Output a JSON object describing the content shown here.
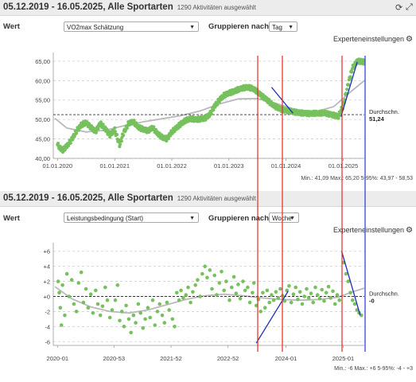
{
  "panels": [
    {
      "title": "05.12.2019 - 16.05.2025, Alle Sportarten",
      "count": "1290 Aktivitäten ausgewählt",
      "wert_label": "Wert",
      "wert_value": "VO2max Schätzung",
      "group_label": "Gruppieren nach",
      "group_value": "Tag",
      "expert_label": "Experteneinstellungen",
      "avg_label": "Durchschn.",
      "avg_value": "51,24",
      "minmax": "Min.: 41,09  Max.: 65,20  5-95%: 43,97 - 58,53"
    },
    {
      "title": "05.12.2019 - 16.05.2025, Alle Sportarten",
      "count": "1290 Aktivitäten ausgewählt",
      "wert_label": "Wert",
      "wert_value": "Leistungsbedingung (Start)",
      "group_label": "Gruppieren nach",
      "group_value": "Woche",
      "expert_label": "Experteneinstellungen",
      "avg_label": "Durchschn.",
      "avg_value": "-0",
      "minmax": "Min.: -6  Max.: +6  5-95%: -4 - +3"
    }
  ],
  "icons": [
    "refresh-icon",
    "expand-icon",
    "gear-icon",
    "chevron-down-icon"
  ],
  "chart_data": [
    {
      "type": "scatter",
      "x_ticks": [
        "01.01.2020",
        "01.01.2021",
        "01.01.2022",
        "01.01.2023",
        "01.01.2024",
        "01.01.2025"
      ],
      "y_ticks": [
        "40,00",
        "45,00",
        "50,00",
        "55,00",
        "60,00",
        "65,00"
      ],
      "ylim": [
        40,
        66
      ],
      "xlim": [
        "2019-12-05",
        "2025-05-16"
      ],
      "grid": "dashed horizontal",
      "average": 51.24,
      "point_color": "#76c15e",
      "trend_color": "#b9b9b9",
      "markers_red": [
        "2023-06-18",
        "2024-03-01",
        "2024-12-01"
      ],
      "markers_blue": [
        "2025-05-10"
      ],
      "annotation_lines": [
        {
          "from": [
            "2023-10-01",
            58.3
          ],
          "to": [
            "2024-02-15",
            51.6
          ]
        },
        {
          "from": [
            "2024-12-18",
            50.7
          ],
          "to": [
            "2025-04-01",
            64.8
          ]
        }
      ],
      "trend": [
        [
          "2019-12-15",
          50.3
        ],
        [
          "2020-03-01",
          47.8
        ],
        [
          "2020-07-01",
          46.8
        ],
        [
          "2020-11-01",
          47.2
        ],
        [
          "2021-03-01",
          48.4
        ],
        [
          "2021-07-01",
          49.4
        ],
        [
          "2021-11-01",
          50.2
        ],
        [
          "2022-03-01",
          51.0
        ],
        [
          "2022-07-01",
          52.2
        ],
        [
          "2022-11-01",
          54.0
        ],
        [
          "2023-03-01",
          55.3
        ],
        [
          "2023-07-01",
          55.4
        ],
        [
          "2023-11-01",
          54.1
        ],
        [
          "2024-03-01",
          52.6
        ],
        [
          "2024-07-01",
          51.9
        ],
        [
          "2024-11-01",
          53.3
        ],
        [
          "2025-03-01",
          57.5
        ],
        [
          "2025-05-16",
          60.0
        ]
      ],
      "series_points": [
        [
          "2020-01-01",
          43.5
        ],
        [
          "2020-02-01",
          42.0
        ],
        [
          "2020-03-01",
          43.2
        ],
        [
          "2020-04-01",
          44.8
        ],
        [
          "2020-05-01",
          47.0
        ],
        [
          "2020-06-01",
          48.6
        ],
        [
          "2020-07-01",
          49.2
        ],
        [
          "2020-08-01",
          48.0
        ],
        [
          "2020-09-01",
          46.9
        ],
        [
          "2020-10-01",
          49.0
        ],
        [
          "2020-11-01",
          47.6
        ],
        [
          "2020-12-01",
          46.0
        ],
        [
          "2021-01-01",
          47.3
        ],
        [
          "2021-02-01",
          43.5
        ],
        [
          "2021-03-01",
          46.8
        ],
        [
          "2021-04-01",
          49.1
        ],
        [
          "2021-05-01",
          49.4
        ],
        [
          "2021-06-01",
          48.0
        ],
        [
          "2021-07-01",
          47.5
        ],
        [
          "2021-08-01",
          47.1
        ],
        [
          "2021-09-01",
          47.9
        ],
        [
          "2021-10-01",
          46.4
        ],
        [
          "2021-11-01",
          45.4
        ],
        [
          "2021-12-01",
          45.0
        ],
        [
          "2022-01-01",
          46.8
        ],
        [
          "2022-02-01",
          47.9
        ],
        [
          "2022-03-01",
          48.9
        ],
        [
          "2022-04-01",
          49.8
        ],
        [
          "2022-05-01",
          50.2
        ],
        [
          "2022-06-01",
          50.0
        ],
        [
          "2022-07-01",
          50.1
        ],
        [
          "2022-08-01",
          50.3
        ],
        [
          "2022-09-01",
          51.3
        ],
        [
          "2022-10-01",
          53.4
        ],
        [
          "2022-11-01",
          55.0
        ],
        [
          "2022-12-01",
          56.2
        ],
        [
          "2023-01-01",
          56.8
        ],
        [
          "2023-02-01",
          57.2
        ],
        [
          "2023-03-01",
          57.7
        ],
        [
          "2023-04-01",
          58.1
        ],
        [
          "2023-05-01",
          58.3
        ],
        [
          "2023-06-01",
          58.0
        ],
        [
          "2023-07-01",
          57.2
        ],
        [
          "2023-08-01",
          56.0
        ],
        [
          "2023-09-01",
          55.1
        ],
        [
          "2023-10-01",
          54.0
        ],
        [
          "2023-11-01",
          53.2
        ],
        [
          "2023-12-01",
          52.6
        ],
        [
          "2024-01-01",
          52.3
        ],
        [
          "2024-02-01",
          52.1
        ],
        [
          "2024-03-01",
          51.9
        ],
        [
          "2024-04-01",
          51.7
        ],
        [
          "2024-05-01",
          51.6
        ],
        [
          "2024-06-01",
          51.5
        ],
        [
          "2024-07-01",
          51.6
        ],
        [
          "2024-08-01",
          51.6
        ],
        [
          "2024-09-01",
          51.7
        ],
        [
          "2024-10-01",
          51.4
        ],
        [
          "2024-11-01",
          51.1
        ],
        [
          "2024-12-01",
          50.8
        ],
        [
          "2025-01-01",
          53.5
        ],
        [
          "2025-02-01",
          59.0
        ],
        [
          "2025-03-01",
          63.2
        ],
        [
          "2025-04-01",
          65.0
        ],
        [
          "2025-05-01",
          64.9
        ],
        [
          "2025-05-15",
          64.8
        ]
      ]
    },
    {
      "type": "scatter",
      "x_ticks": [
        "2020-01",
        "2020-53",
        "2021-52",
        "2022-52",
        "2024-01",
        "2025-01"
      ],
      "y_ticks": [
        "-6",
        "-4",
        "-2",
        "+0",
        "+2",
        "+4",
        "+6"
      ],
      "ylim": [
        -6.5,
        6.5
      ],
      "grid": "dashed horizontal",
      "average": 0,
      "point_color": "#76c15e",
      "trend_color": "#b9b9b9",
      "markers_red": [
        "2023-06-18",
        "2024-01-01",
        "2024-12-20"
      ],
      "markers_blue": [
        "2025-04-20"
      ],
      "annotation_lines": [
        {
          "from": [
            "2023-06-25",
            -6.2
          ],
          "to": [
            "2024-01-15",
            0.7
          ]
        },
        {
          "from": [
            "2024-12-22",
            6.0
          ],
          "to": [
            "2025-04-20",
            -2.5
          ]
        }
      ],
      "trend": [
        [
          "2019-12-15",
          1.3
        ],
        [
          "2020-04-01",
          -0.3
        ],
        [
          "2020-08-01",
          -1.4
        ],
        [
          "2020-12-01",
          -2.0
        ],
        [
          "2021-04-01",
          -2.2
        ],
        [
          "2021-08-01",
          -1.8
        ],
        [
          "2021-12-01",
          -1.1
        ],
        [
          "2022-04-01",
          -0.4
        ],
        [
          "2022-08-01",
          0.1
        ],
        [
          "2022-12-01",
          0.3
        ],
        [
          "2023-04-01",
          0.1
        ],
        [
          "2023-08-01",
          -0.2
        ],
        [
          "2023-12-01",
          -0.4
        ],
        [
          "2024-04-01",
          -0.5
        ],
        [
          "2024-08-01",
          -0.4
        ],
        [
          "2024-12-01",
          -0.1
        ],
        [
          "2025-03-01",
          0.6
        ],
        [
          "2025-05-16",
          1.1
        ]
      ],
      "series_points": [
        [
          "2020-01-05",
          2.0
        ],
        [
          "2020-01-12",
          0.5
        ],
        [
          "2020-01-19",
          -1.5
        ],
        [
          "2020-01-26",
          -3.8
        ],
        [
          "2020-02-02",
          1.5
        ],
        [
          "2020-02-16",
          -2.5
        ],
        [
          "2020-03-01",
          3.0
        ],
        [
          "2020-03-15",
          0.0
        ],
        [
          "2020-04-01",
          2.2
        ],
        [
          "2020-04-15",
          -1.0
        ],
        [
          "2020-05-01",
          -2.0
        ],
        [
          "2020-05-15",
          1.8
        ],
        [
          "2020-06-01",
          3.2
        ],
        [
          "2020-06-15",
          -0.8
        ],
        [
          "2020-07-01",
          1.0
        ],
        [
          "2020-07-15",
          -1.5
        ],
        [
          "2020-08-01",
          0.3
        ],
        [
          "2020-08-15",
          -2.2
        ],
        [
          "2020-09-01",
          0.8
        ],
        [
          "2020-09-15",
          -1.0
        ],
        [
          "2020-10-01",
          -2.5
        ],
        [
          "2020-10-15",
          -1.3
        ],
        [
          "2020-11-01",
          1.2
        ],
        [
          "2020-11-15",
          -0.5
        ],
        [
          "2020-12-01",
          -2.8
        ],
        [
          "2020-12-15",
          -1.8
        ],
        [
          "2021-01-05",
          -0.5
        ],
        [
          "2021-01-19",
          1.5
        ],
        [
          "2021-02-02",
          -3.2
        ],
        [
          "2021-02-16",
          -2.0
        ],
        [
          "2021-03-01",
          -4.0
        ],
        [
          "2021-03-15",
          -1.2
        ],
        [
          "2021-04-01",
          -3.0
        ],
        [
          "2021-04-15",
          -4.8
        ],
        [
          "2021-05-01",
          -2.5
        ],
        [
          "2021-05-15",
          -3.5
        ],
        [
          "2021-06-01",
          -1.0
        ],
        [
          "2021-06-15",
          -2.2
        ],
        [
          "2021-07-01",
          -4.2
        ],
        [
          "2021-07-15",
          -3.0
        ],
        [
          "2021-08-01",
          -1.5
        ],
        [
          "2021-08-15",
          -2.8
        ],
        [
          "2021-09-01",
          -0.5
        ],
        [
          "2021-09-15",
          -3.8
        ],
        [
          "2021-10-01",
          -2.0
        ],
        [
          "2021-10-15",
          -1.0
        ],
        [
          "2021-11-01",
          -2.5
        ],
        [
          "2021-11-15",
          -3.5
        ],
        [
          "2021-12-01",
          -0.8
        ],
        [
          "2021-12-15",
          -1.8
        ],
        [
          "2022-01-05",
          -3.0
        ],
        [
          "2022-01-19",
          -4.0
        ],
        [
          "2022-02-02",
          0.5
        ],
        [
          "2022-02-16",
          -0.5
        ],
        [
          "2022-03-01",
          0.8
        ],
        [
          "2022-03-15",
          -0.2
        ],
        [
          "2022-04-01",
          0.2
        ],
        [
          "2022-04-15",
          1.2
        ],
        [
          "2022-05-01",
          -0.8
        ],
        [
          "2022-05-15",
          0.6
        ],
        [
          "2022-06-01",
          1.5
        ],
        [
          "2022-06-15",
          2.2
        ],
        [
          "2022-07-01",
          0.0
        ],
        [
          "2022-07-15",
          3.0
        ],
        [
          "2022-08-01",
          4.0
        ],
        [
          "2022-08-15",
          2.5
        ],
        [
          "2022-09-01",
          3.5
        ],
        [
          "2022-09-15",
          1.0
        ],
        [
          "2022-10-01",
          2.8
        ],
        [
          "2022-10-15",
          0.2
        ],
        [
          "2022-11-01",
          1.8
        ],
        [
          "2022-11-15",
          3.3
        ],
        [
          "2022-12-01",
          0.8
        ],
        [
          "2022-12-15",
          2.0
        ],
        [
          "2023-01-05",
          -0.5
        ],
        [
          "2023-01-19",
          1.2
        ],
        [
          "2023-02-02",
          2.6
        ],
        [
          "2023-02-16",
          0.4
        ],
        [
          "2023-03-01",
          1.6
        ],
        [
          "2023-03-15",
          -0.3
        ],
        [
          "2023-04-01",
          2.0
        ],
        [
          "2023-04-15",
          0.8
        ],
        [
          "2023-05-01",
          1.2
        ],
        [
          "2023-05-15",
          -0.8
        ],
        [
          "2023-06-01",
          0.5
        ],
        [
          "2023-06-10",
          1.8
        ],
        [
          "2023-06-25",
          -1.2
        ],
        [
          "2023-07-09",
          -0.4
        ],
        [
          "2023-07-23",
          -2.0
        ],
        [
          "2023-08-06",
          0.5
        ],
        [
          "2023-08-20",
          -1.5
        ],
        [
          "2023-09-03",
          0.8
        ],
        [
          "2023-09-17",
          -0.8
        ],
        [
          "2023-10-01",
          0.2
        ],
        [
          "2023-10-15",
          -0.5
        ],
        [
          "2023-10-29",
          0.6
        ],
        [
          "2023-11-12",
          -0.2
        ],
        [
          "2023-11-26",
          1.0
        ],
        [
          "2023-12-10",
          0.1
        ],
        [
          "2023-12-24",
          -0.6
        ],
        [
          "2024-01-07",
          0.8
        ],
        [
          "2024-01-21",
          1.4
        ],
        [
          "2024-02-04",
          -0.8
        ],
        [
          "2024-02-18",
          0.3
        ],
        [
          "2024-03-03",
          1.2
        ],
        [
          "2024-03-17",
          -0.4
        ],
        [
          "2024-03-31",
          0.6
        ],
        [
          "2024-04-14",
          -1.0
        ],
        [
          "2024-04-28",
          0.0
        ],
        [
          "2024-05-12",
          1.0
        ],
        [
          "2024-05-26",
          -0.2
        ],
        [
          "2024-06-09",
          0.4
        ],
        [
          "2024-06-23",
          -0.8
        ],
        [
          "2024-07-07",
          1.2
        ],
        [
          "2024-07-21",
          0.2
        ],
        [
          "2024-08-04",
          -0.3
        ],
        [
          "2024-08-18",
          0.9
        ],
        [
          "2024-09-01",
          -0.6
        ],
        [
          "2024-09-15",
          0.5
        ],
        [
          "2024-09-29",
          1.3
        ],
        [
          "2024-10-13",
          -0.2
        ],
        [
          "2024-10-27",
          0.7
        ],
        [
          "2024-11-10",
          -1.0
        ],
        [
          "2024-11-24",
          0.2
        ],
        [
          "2024-12-08",
          -0.5
        ],
        [
          "2025-01-05",
          4.5
        ],
        [
          "2025-01-19",
          3.0
        ],
        [
          "2025-02-02",
          2.0
        ],
        [
          "2025-02-16",
          0.5
        ],
        [
          "2025-03-02",
          -0.5
        ],
        [
          "2025-03-16",
          -1.0
        ],
        [
          "2025-03-30",
          -1.8
        ],
        [
          "2025-04-13",
          -2.2
        ],
        [
          "2025-04-27",
          -2.5
        ]
      ]
    }
  ]
}
